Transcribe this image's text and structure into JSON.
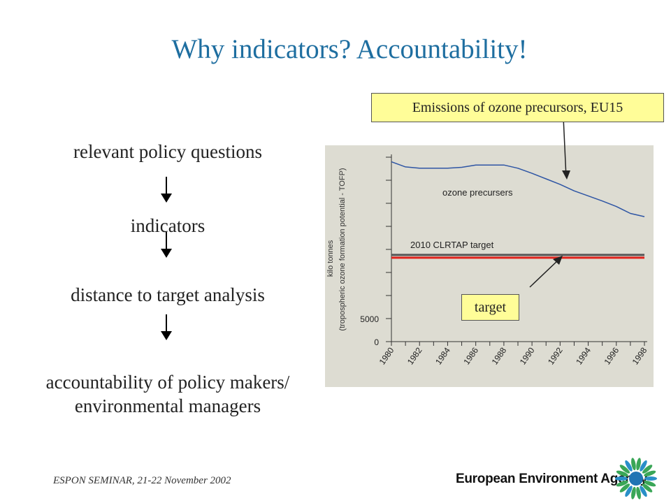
{
  "slide": {
    "title": "Why indicators? Accountability!",
    "footer": "ESPON SEMINAR, 21-22 November 2002",
    "agency": "European Environment Agency"
  },
  "flow": {
    "step1": "relevant policy questions",
    "step2": "indicators",
    "step3": "distance to target analysis",
    "step4_line1": "accountability of policy makers/",
    "step4_line2": "environmental managers"
  },
  "callouts": {
    "emissions": "Emissions of ozone precursors, EU15",
    "target": "target"
  },
  "chart_data": {
    "type": "line",
    "title": "",
    "ylabel_line1": "kilo tonnes",
    "ylabel_line2": "(tropospheric ozone formation potential - TOFP)",
    "ytick_labels": [
      "0",
      "5000"
    ],
    "x": [
      "1980",
      "1981",
      "1982",
      "1983",
      "1984",
      "1985",
      "1986",
      "1987",
      "1988",
      "1989",
      "1990",
      "1991",
      "1992",
      "1993",
      "1994",
      "1995",
      "1996",
      "1997",
      "1998"
    ],
    "xtick_labels": [
      "1980",
      "1982",
      "1984",
      "1986",
      "1988",
      "1990",
      "1992",
      "1994",
      "1996",
      "1998"
    ],
    "ylim": [
      0,
      40000
    ],
    "series": [
      {
        "name": "ozone precursers",
        "color": "#2e55a4",
        "values": [
          39000,
          37900,
          37600,
          37600,
          37600,
          37800,
          38300,
          38300,
          38300,
          37600,
          36500,
          35300,
          34100,
          32700,
          31600,
          30500,
          29300,
          27800,
          27100
        ]
      },
      {
        "name": "2010 CLRTAP target",
        "color": "#555555",
        "values": [
          18800,
          18800,
          18800,
          18800,
          18800,
          18800,
          18800,
          18800,
          18800,
          18800,
          18800,
          18800,
          18800,
          18800,
          18800,
          18800,
          18800,
          18800,
          18800
        ]
      },
      {
        "name": "target",
        "color": "#e0231c",
        "values": [
          18200,
          18200,
          18200,
          18200,
          18200,
          18200,
          18200,
          18200,
          18200,
          18200,
          18200,
          18200,
          18200,
          18200,
          18200,
          18200,
          18200,
          18200,
          18200
        ]
      }
    ],
    "grid": false,
    "background": "#dddcd2"
  }
}
